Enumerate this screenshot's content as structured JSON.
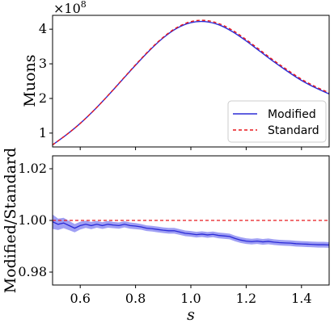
{
  "chart_data": [
    {
      "type": "line",
      "ylabel": "Muons",
      "offset_label": "×10",
      "offset_exponent": "8",
      "xlim": [
        0.5,
        1.5
      ],
      "ylim": [
        0.6,
        4.4
      ],
      "yticks": [
        1,
        2,
        3,
        4
      ],
      "yticklabels": [
        "1",
        "2",
        "3",
        "4"
      ],
      "xticks": [
        0.6,
        0.8,
        1.0,
        1.2,
        1.4
      ],
      "legend_position": "lower-right",
      "series": [
        {
          "name": "Modified",
          "color": "#2b2bd6",
          "style": "solid",
          "x": [
            0.5,
            0.55,
            0.6,
            0.65,
            0.7,
            0.75,
            0.8,
            0.85,
            0.9,
            0.95,
            1.0,
            1.05,
            1.1,
            1.15,
            1.2,
            1.25,
            1.3,
            1.35,
            1.4,
            1.45,
            1.5
          ],
          "values": [
            0.66,
            0.95,
            1.28,
            1.66,
            2.08,
            2.52,
            2.96,
            3.38,
            3.75,
            4.03,
            4.19,
            4.22,
            4.13,
            3.93,
            3.66,
            3.36,
            3.06,
            2.78,
            2.52,
            2.31,
            2.13
          ]
        },
        {
          "name": "Standard",
          "color": "#e8171c",
          "style": "dashed",
          "x": [
            0.5,
            0.55,
            0.6,
            0.65,
            0.7,
            0.75,
            0.8,
            0.85,
            0.9,
            0.95,
            1.0,
            1.05,
            1.1,
            1.15,
            1.2,
            1.25,
            1.3,
            1.35,
            1.4,
            1.45,
            1.5
          ],
          "values": [
            0.661,
            0.952,
            1.281,
            1.661,
            2.083,
            2.527,
            2.972,
            3.395,
            3.768,
            4.051,
            4.219,
            4.254,
            4.166,
            3.971,
            3.699,
            3.398,
            3.097,
            2.818,
            2.555,
            2.344,
            2.162
          ]
        }
      ]
    },
    {
      "type": "line",
      "xlabel": "s",
      "ylabel": "Modified/Standard",
      "xlim": [
        0.5,
        1.5
      ],
      "ylim": [
        0.975,
        1.025
      ],
      "yticks": [
        0.98,
        1.0,
        1.02
      ],
      "yticklabels": [
        "0.98",
        "1.00",
        "1.02"
      ],
      "xticks": [
        0.6,
        0.8,
        1.0,
        1.2,
        1.4
      ],
      "xticklabels": [
        "0.6",
        "0.8",
        "1.0",
        "1.2",
        "1.4"
      ],
      "reference_line": {
        "y": 1.0,
        "color": "#e8171c",
        "style": "dashed"
      },
      "series": [
        {
          "color": "#2b2bd6",
          "band_color": "#7f7ff0",
          "x": [
            0.5,
            0.52,
            0.54,
            0.56,
            0.58,
            0.6,
            0.62,
            0.64,
            0.66,
            0.68,
            0.7,
            0.72,
            0.74,
            0.76,
            0.78,
            0.8,
            0.82,
            0.84,
            0.86,
            0.88,
            0.9,
            0.92,
            0.94,
            0.96,
            0.98,
            1.0,
            1.02,
            1.04,
            1.06,
            1.08,
            1.1,
            1.12,
            1.14,
            1.16,
            1.18,
            1.2,
            1.22,
            1.24,
            1.26,
            1.28,
            1.3,
            1.32,
            1.34,
            1.36,
            1.38,
            1.4,
            1.42,
            1.44,
            1.46,
            1.48,
            1.5
          ],
          "values": [
            0.9995,
            0.9985,
            0.999,
            0.998,
            0.997,
            0.998,
            0.9985,
            0.998,
            0.9985,
            0.998,
            0.9985,
            0.9982,
            0.998,
            0.9985,
            0.998,
            0.9978,
            0.9975,
            0.997,
            0.9968,
            0.9965,
            0.9962,
            0.996,
            0.996,
            0.9955,
            0.995,
            0.9948,
            0.9945,
            0.9947,
            0.9944,
            0.9946,
            0.9942,
            0.994,
            0.9938,
            0.993,
            0.9924,
            0.992,
            0.9918,
            0.992,
            0.9917,
            0.9919,
            0.9916,
            0.9914,
            0.9913,
            0.9912,
            0.991,
            0.9909,
            0.9908,
            0.9907,
            0.9906,
            0.9906,
            0.9905
          ],
          "band_halfwidth": [
            0.0028,
            0.0022,
            0.002,
            0.0018,
            0.0016,
            0.0015,
            0.0014,
            0.0014,
            0.0013,
            0.0013,
            0.0013,
            0.0012,
            0.0012,
            0.0012,
            0.0012,
            0.0012,
            0.0011,
            0.0011,
            0.0011,
            0.0011,
            0.0011,
            0.0011,
            0.0011,
            0.0011,
            0.0011,
            0.0011,
            0.0011,
            0.0011,
            0.0011,
            0.0011,
            0.0011,
            0.0011,
            0.0011,
            0.0011,
            0.0011,
            0.0011,
            0.0011,
            0.0011,
            0.0011,
            0.0011,
            0.0011,
            0.0011,
            0.0011,
            0.0011,
            0.0011,
            0.0011,
            0.0011,
            0.0011,
            0.0011,
            0.0011,
            0.0011
          ]
        }
      ]
    }
  ]
}
